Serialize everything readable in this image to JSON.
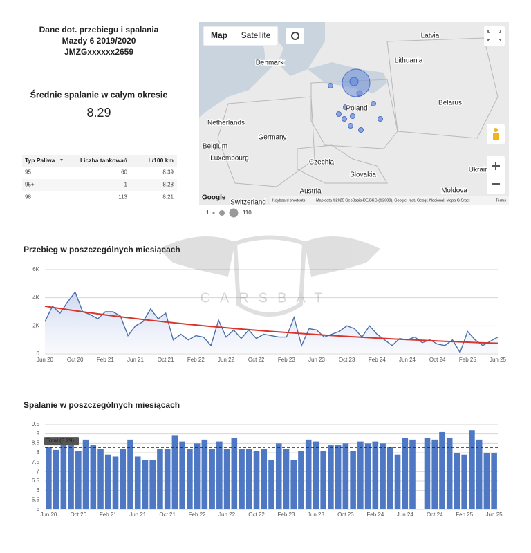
{
  "header": {
    "lines": [
      "Dane dot. przebiegu i spalania",
      "Mazdy 6 2019/2020",
      "JMZGxxxxxx2659"
    ]
  },
  "summary": {
    "label": "Średnie spalanie w całym okresie",
    "value": "8.29"
  },
  "table": {
    "columns": [
      "Typ Paliwa",
      "Liczba tankowań",
      "L/100 km"
    ],
    "rows": [
      [
        "95",
        "60",
        "8.39"
      ],
      [
        "95+",
        "1",
        "8.28"
      ],
      [
        "98",
        "113",
        "8.21"
      ]
    ]
  },
  "map": {
    "buttons": [
      "Map",
      "Satellite"
    ],
    "labels": [
      "Latvia",
      "Denmark",
      "Lithuania",
      "Poland",
      "Belarus",
      "Netherlands",
      "Germany",
      "Belgium",
      "Luxembourg",
      "Czechia",
      "Slovakia",
      "Ukraine",
      "Austria",
      "Moldova",
      "Switzerland"
    ],
    "attribution": [
      "Keyboard shortcuts",
      "Map data ©2025 GeoBasis-DE/BKG (©2009), Google, Inst. Geogr. Nacional, Mapa GISrael",
      "Terms"
    ],
    "size_legend": [
      "1",
      "110"
    ]
  },
  "watermark": "CARSBAT",
  "chart_data": [
    {
      "type": "line",
      "title": "Przebieg w poszczególnych miesiącach",
      "categories": [
        "Jun 20",
        null,
        null,
        null,
        "Oct 20",
        null,
        null,
        null,
        "Feb 21",
        null,
        null,
        null,
        "Jun 21",
        null,
        null,
        null,
        "Oct 21",
        null,
        null,
        null,
        "Feb 22",
        null,
        null,
        null,
        "Jun 22",
        null,
        null,
        null,
        "Oct 22",
        null,
        null,
        null,
        "Feb 23",
        null,
        null,
        null,
        "Jun 23",
        null,
        null,
        null,
        "Oct 23",
        null,
        null,
        null,
        "Feb 24",
        null,
        null,
        null,
        "Jun 24",
        null,
        null,
        null,
        "Oct 24",
        null,
        null,
        null,
        "Feb 25",
        null,
        null,
        null,
        "Jun 25"
      ],
      "series": [
        {
          "color": "#4a6fa5",
          "values": [
            2300,
            3400,
            2900,
            3700,
            4400,
            3000,
            2800,
            2500,
            3000,
            3000,
            2700,
            1300,
            2000,
            2300,
            3200,
            2500,
            2900,
            1000,
            1400,
            1000,
            1300,
            1200,
            600,
            2400,
            1200,
            1700,
            1100,
            1700,
            1100,
            1400,
            1300,
            1200,
            1200,
            2600,
            600,
            1800,
            1700,
            1200,
            1400,
            1600,
            2000,
            1800,
            1200,
            2000,
            1400,
            1000,
            600,
            1100,
            1000,
            1200,
            800,
            1000,
            700,
            600,
            1000,
            100,
            1600,
            1000,
            600,
            900,
            1200
          ]
        },
        {
          "color": "#d9342b",
          "values": [
            3400,
            3315,
            3233,
            3153,
            3075,
            2999,
            2924,
            2852,
            2781,
            2712,
            2645,
            2580,
            2516,
            2453,
            2392,
            2333,
            2275,
            2219,
            2164,
            2110,
            2058,
            2007,
            1957,
            1909,
            1861,
            1815,
            1770,
            1726,
            1684,
            1642,
            1601,
            1562,
            1523,
            1485,
            1449,
            1413,
            1378,
            1343,
            1310,
            1278,
            1246,
            1215,
            1185,
            1156,
            1127,
            1099,
            1072,
            1045,
            1019,
            994,
            969,
            945,
            922,
            899,
            877,
            855,
            834,
            813,
            793,
            773,
            754
          ]
        }
      ],
      "ylim": [
        0,
        6000
      ],
      "yticks": [
        0,
        {
          "value": 2000,
          "label": "2K"
        },
        {
          "value": 4000,
          "label": "4K"
        },
        {
          "value": 6000,
          "label": "6K"
        }
      ],
      "grid": true
    },
    {
      "type": "bar",
      "title": "Spalanie w poszczególnych miesiącach",
      "categories": [
        "Jun 20",
        null,
        null,
        null,
        "Oct 20",
        null,
        null,
        null,
        "Feb 21",
        null,
        null,
        null,
        "Jun 21",
        null,
        null,
        null,
        "Oct 21",
        null,
        null,
        null,
        "Feb 22",
        null,
        null,
        null,
        "Jun 22",
        null,
        null,
        null,
        "Oct 22",
        null,
        null,
        null,
        "Feb 23",
        null,
        null,
        null,
        "Jun 23",
        null,
        null,
        null,
        "Oct 23",
        null,
        null,
        null,
        "Feb 24",
        null,
        null,
        null,
        "Jun 24",
        null,
        null,
        null,
        "Oct 24",
        null,
        null,
        null,
        "Feb 25",
        null,
        null,
        null,
        "Jun 25"
      ],
      "values": [
        8.3,
        8.15,
        8.5,
        8.4,
        8.1,
        8.7,
        8.4,
        8.2,
        7.9,
        7.8,
        8.2,
        8.7,
        7.8,
        7.6,
        7.6,
        8.2,
        8.2,
        8.9,
        8.6,
        8.2,
        8.5,
        8.7,
        8.2,
        8.6,
        8.2,
        8.8,
        8.2,
        8.2,
        8.1,
        8.2,
        7.6,
        8.5,
        8.2,
        7.6,
        8.1,
        8.7,
        8.6,
        8.1,
        8.4,
        8.4,
        8.5,
        8.1,
        8.6,
        8.5,
        8.6,
        8.5,
        8.3,
        7.9,
        8.8,
        8.7,
        null,
        8.8,
        8.7,
        9.1,
        8.8,
        8.0,
        7.9,
        9.2,
        8.7,
        8.0,
        8.0
      ],
      "color": "#4f78c4",
      "reference": {
        "value": 8.29,
        "label": "Total (8.29)"
      },
      "ylim": [
        5,
        9.5
      ],
      "yticks": [
        5,
        5.5,
        6,
        6.5,
        7,
        7.5,
        8,
        8.5,
        9,
        9.5
      ],
      "grid": true
    }
  ]
}
